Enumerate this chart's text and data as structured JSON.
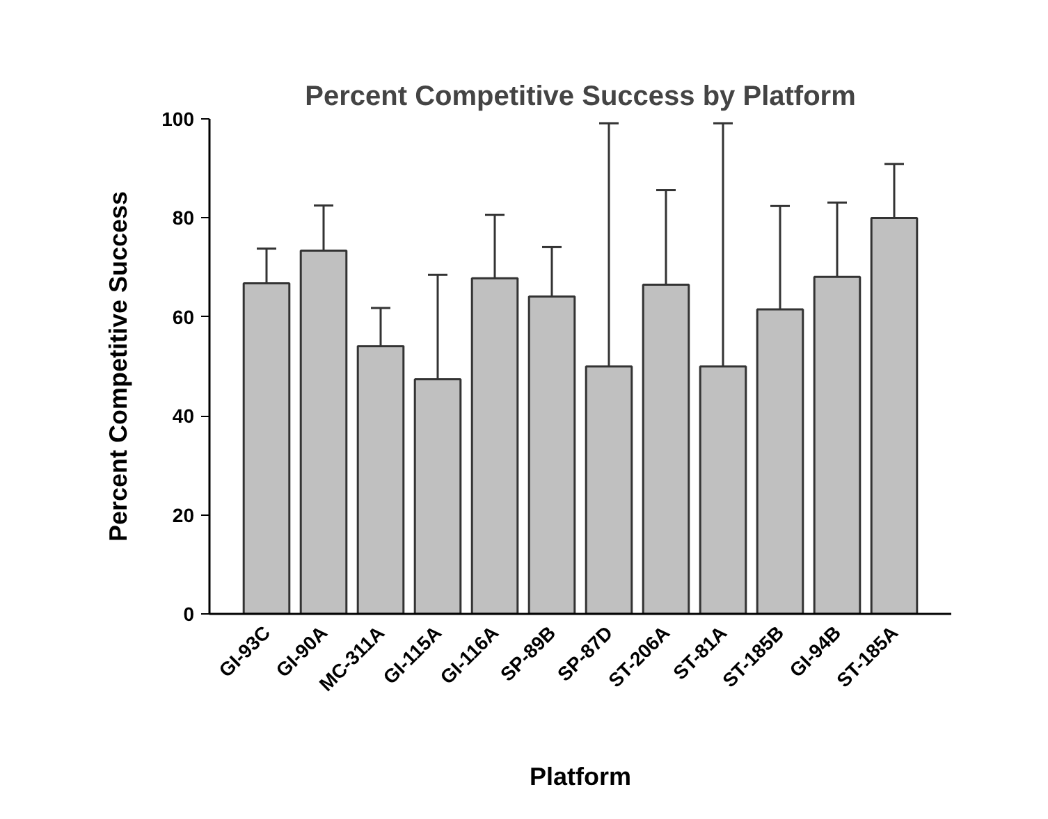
{
  "chart_data": {
    "type": "bar",
    "title": "Percent Competitive Success by Platform",
    "xlabel": "Platform",
    "ylabel": "Percent Competitive Success",
    "categories": [
      "GI-93C",
      "GI-90A",
      "MC-311A",
      "GI-115A",
      "GI-116A",
      "SP-89B",
      "SP-87D",
      "ST-206A",
      "ST-81A",
      "ST-185B",
      "GI-94B",
      "ST-185A"
    ],
    "values": [
      66.8,
      73.4,
      54.1,
      47.4,
      67.8,
      64.1,
      50.0,
      66.5,
      50.0,
      61.5,
      68.1,
      80.0
    ],
    "errors": [
      [
        66.8,
        73.8
      ],
      [
        73.4,
        82.5
      ],
      [
        54.1,
        61.8
      ],
      [
        47.4,
        68.5
      ],
      [
        67.8,
        80.6
      ],
      [
        64.1,
        74.1
      ],
      [
        50.0,
        99.1
      ],
      [
        66.5,
        85.6
      ],
      [
        50.0,
        99.1
      ],
      [
        61.5,
        82.4
      ],
      [
        68.1,
        83.1
      ],
      [
        80.0,
        90.9
      ]
    ],
    "color": "#c0c0c0",
    "ylim": [
      0,
      100
    ],
    "yticks": [
      0,
      20,
      40,
      60,
      80,
      100
    ],
    "grid": false
  }
}
